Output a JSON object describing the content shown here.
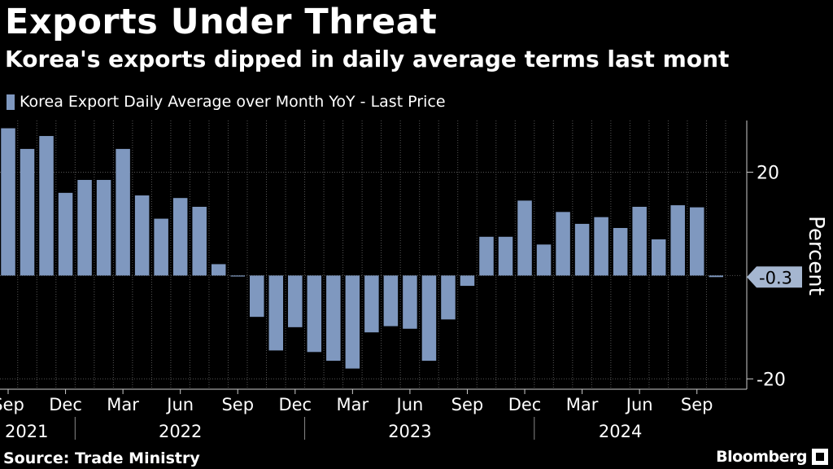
{
  "header": {
    "title": "Exports Under Threat",
    "subtitle": "Korea's exports dipped in daily average terms last mont"
  },
  "footer": {
    "source": "Source: Trade Ministry",
    "logo_text": "Bloomberg"
  },
  "colors": {
    "bar": "#7f98bf",
    "background": "#000000",
    "grid": "#555555",
    "text": "#ffffff"
  },
  "chart_data": {
    "type": "bar",
    "legend": "Korea Export Daily Average over Month YoY - Last Price",
    "ylabel": "Percent",
    "ylim": [
      -22,
      30
    ],
    "yticks": [
      20,
      -20
    ],
    "last_value_label": "-0.3",
    "categories": [
      "2021-09",
      "2021-10",
      "2021-11",
      "2021-12",
      "2022-01",
      "2022-02",
      "2022-03",
      "2022-04",
      "2022-05",
      "2022-06",
      "2022-07",
      "2022-08",
      "2022-09",
      "2022-10",
      "2022-11",
      "2022-12",
      "2023-01",
      "2023-02",
      "2023-03",
      "2023-04",
      "2023-05",
      "2023-06",
      "2023-07",
      "2023-08",
      "2023-09",
      "2023-10",
      "2023-11",
      "2023-12",
      "2024-01",
      "2024-02",
      "2024-03",
      "2024-04",
      "2024-05",
      "2024-06",
      "2024-07",
      "2024-08",
      "2024-09",
      "2024-10"
    ],
    "values": [
      28.5,
      24.5,
      27.0,
      16.0,
      18.5,
      18.5,
      24.5,
      15.5,
      11.0,
      15.0,
      13.3,
      2.2,
      -0.1,
      -8.0,
      -14.5,
      -10.0,
      -14.8,
      -16.5,
      -18.0,
      -11.0,
      -9.8,
      -10.3,
      -16.5,
      -8.5,
      -2.0,
      7.5,
      7.5,
      14.5,
      6.0,
      12.3,
      10.0,
      11.3,
      9.2,
      13.3,
      7.0,
      13.6,
      13.2,
      -0.3
    ],
    "x_ticks": [
      {
        "index": 0,
        "label": "Sep"
      },
      {
        "index": 3,
        "label": "Dec"
      },
      {
        "index": 6,
        "label": "Mar"
      },
      {
        "index": 9,
        "label": "Jun"
      },
      {
        "index": 12,
        "label": "Sep"
      },
      {
        "index": 15,
        "label": "Dec"
      },
      {
        "index": 18,
        "label": "Mar"
      },
      {
        "index": 21,
        "label": "Jun"
      },
      {
        "index": 24,
        "label": "Sep"
      },
      {
        "index": 27,
        "label": "Dec"
      },
      {
        "index": 30,
        "label": "Mar"
      },
      {
        "index": 33,
        "label": "Jun"
      },
      {
        "index": 36,
        "label": "Sep"
      }
    ],
    "years": [
      {
        "label": "2021",
        "start": 0,
        "end": 3
      },
      {
        "label": "2022",
        "start": 3,
        "end": 15
      },
      {
        "label": "2023",
        "start": 15,
        "end": 27
      },
      {
        "label": "2024",
        "start": 27,
        "end": 37
      }
    ]
  }
}
